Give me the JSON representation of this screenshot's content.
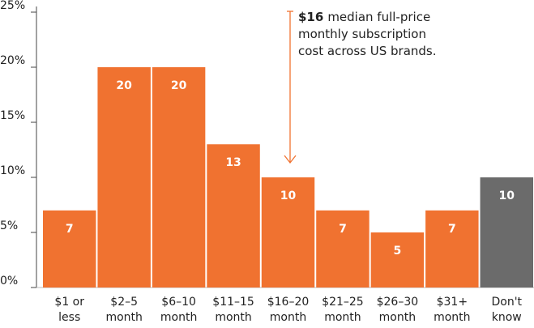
{
  "chart_data": {
    "type": "bar",
    "categories": [
      [
        "$1 or",
        "less"
      ],
      [
        "$2–5",
        "month"
      ],
      [
        "$6–10",
        "month"
      ],
      [
        "$11–15",
        "month"
      ],
      [
        "$16–20",
        "month"
      ],
      [
        "$21–25",
        "month"
      ],
      [
        "$26–30",
        "month"
      ],
      [
        "$31+",
        "month"
      ],
      [
        "Don't",
        "know"
      ]
    ],
    "values": [
      7,
      20,
      20,
      13,
      10,
      7,
      5,
      7,
      10
    ],
    "colors": [
      "#f07230",
      "#f07230",
      "#f07230",
      "#f07230",
      "#f07230",
      "#f07230",
      "#f07230",
      "#f07230",
      "#6b6b6b"
    ],
    "ylim": [
      0,
      25
    ],
    "yticks": [
      {
        "value": 0,
        "label": "0%"
      },
      {
        "value": 5,
        "label": "5%"
      },
      {
        "value": 10,
        "label": "10%"
      },
      {
        "value": 15,
        "label": "15%"
      },
      {
        "value": 20,
        "label": "20%"
      },
      {
        "value": 25,
        "label": "25%"
      }
    ],
    "annotation": {
      "bold": "$16",
      "lines": [
        "median full-price",
        "monthly subscription",
        "cost across US brands."
      ]
    }
  }
}
